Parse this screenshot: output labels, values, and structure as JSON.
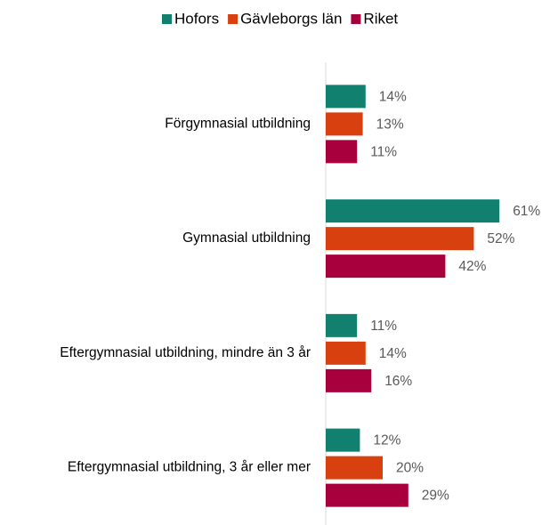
{
  "chart_data": {
    "type": "barh",
    "categories": [
      "Förgymnasial utbildning",
      "Gymnasial utbildning",
      "Eftergymnasial utbildning, mindre än 3 år",
      "Eftergymnasial utbildning, 3 år eller mer"
    ],
    "series": [
      {
        "name": "Hofors",
        "color": "#12806f",
        "values": [
          14,
          61,
          11,
          12
        ],
        "value_labels": [
          "14%",
          "61%",
          "11%",
          "12%"
        ]
      },
      {
        "name": "Gävleborgs län",
        "color": "#d9400f",
        "values": [
          13,
          52,
          14,
          20
        ],
        "value_labels": [
          "13%",
          "52%",
          "14%",
          "20%"
        ]
      },
      {
        "name": "Riket",
        "color": "#a8003c",
        "values": [
          11,
          42,
          16,
          29
        ],
        "value_labels": [
          "11%",
          "42%",
          "16%",
          "29%"
        ]
      }
    ],
    "xlim": [
      0,
      70
    ],
    "legend": "top"
  }
}
